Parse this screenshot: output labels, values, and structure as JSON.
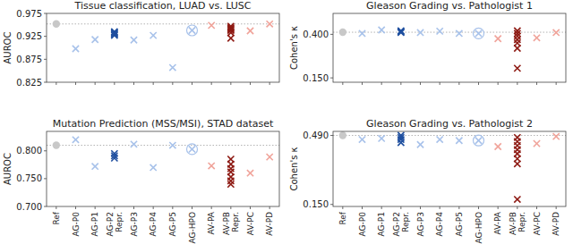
{
  "chart_data": [
    {
      "type": "scatter",
      "title": "Tissue classification, LUAD vs. LUSC",
      "y_label": "AUROC",
      "categories": [
        "Ref",
        "AG-P0",
        "AG-P1",
        "AG-P2 Repr.",
        "AG-P3",
        "AG-P4",
        "AG-P5",
        "AG-HPO",
        "AV-PA",
        "AV-PB Repr.",
        "AV-PC",
        "AV-PD"
      ],
      "tick_labels": "y",
      "ylim": [
        0.825,
        0.975
      ],
      "yticks": [
        0.825,
        0.875,
        0.925,
        0.975
      ],
      "series": [
        {
          "marker": "circle",
          "color": "#c8c8c8",
          "line_style": "dotted",
          "values": [
            0.952,
            null,
            null,
            null,
            null,
            null,
            null,
            null,
            null,
            null,
            null,
            null
          ]
        },
        {
          "marker": "x",
          "color": "#a8c2ea",
          "values": [
            null,
            0.898,
            0.918,
            null,
            0.917,
            0.927,
            0.857,
            null,
            null,
            null,
            null,
            null
          ]
        },
        {
          "marker": "x",
          "color": "#1f4f9f",
          "values": [
            null,
            null,
            null,
            [
              0.935,
              0.933,
              0.931,
              0.929,
              0.927
            ],
            null,
            null,
            null,
            null,
            null,
            null,
            null,
            null
          ]
        },
        {
          "marker": "circle-x",
          "color": "#a8c2ea",
          "values": [
            null,
            null,
            null,
            null,
            null,
            null,
            null,
            0.938,
            null,
            null,
            null,
            null
          ]
        },
        {
          "marker": "x",
          "color": "#f0a39a",
          "values": [
            null,
            null,
            null,
            null,
            null,
            null,
            null,
            null,
            0.949,
            null,
            0.937,
            0.952
          ]
        },
        {
          "marker": "x",
          "color": "#8e1b14",
          "values": [
            null,
            null,
            null,
            null,
            null,
            null,
            null,
            null,
            null,
            [
              0.947,
              0.944,
              0.942,
              0.94,
              0.938,
              0.933,
              0.921
            ],
            null,
            null
          ]
        }
      ]
    },
    {
      "type": "scatter",
      "title": "Gleason Grading vs. Pathologist 1",
      "y_label": "Cohen's κ",
      "categories": [
        "Ref",
        "AG-P0",
        "AG-P1",
        "AG-P2 Repr.",
        "AG-P3",
        "AG-P4",
        "AG-P5",
        "AG-HPO",
        "AV-PA",
        "AV-PB Repr.",
        "AV-PC",
        "AV-PD"
      ],
      "tick_labels": "y",
      "ylim": [
        0.125,
        0.52
      ],
      "yticks": [
        {
          "value": 0.15,
          "label": "0.150"
        },
        {
          "value": 0.4,
          "label": "0.400"
        }
      ],
      "series": [
        {
          "marker": "circle",
          "color": "#c8c8c8",
          "line_style": "dotted",
          "values": [
            0.412,
            null,
            null,
            null,
            null,
            null,
            null,
            null,
            null,
            null,
            null,
            null
          ]
        },
        {
          "marker": "x",
          "color": "#a8c2ea",
          "values": [
            null,
            0.405,
            0.425,
            null,
            0.41,
            0.418,
            0.405,
            null,
            null,
            null,
            null,
            null
          ]
        },
        {
          "marker": "x",
          "color": "#1f4f9f",
          "values": [
            null,
            null,
            null,
            [
              0.42,
              0.415,
              0.41
            ],
            null,
            null,
            null,
            null,
            null,
            null,
            null,
            null
          ]
        },
        {
          "marker": "circle-x",
          "color": "#a8c2ea",
          "values": [
            null,
            null,
            null,
            null,
            null,
            null,
            null,
            0.405,
            null,
            null,
            null,
            null
          ]
        },
        {
          "marker": "x",
          "color": "#f0a39a",
          "values": [
            null,
            null,
            null,
            null,
            null,
            null,
            null,
            null,
            0.375,
            null,
            0.38,
            0.41
          ]
        },
        {
          "marker": "x",
          "color": "#8e1b14",
          "values": [
            null,
            null,
            null,
            null,
            null,
            null,
            null,
            null,
            null,
            [
              0.42,
              0.405,
              0.39,
              0.37,
              0.35,
              0.32,
              0.205
            ],
            null,
            null
          ]
        }
      ]
    },
    {
      "type": "scatter",
      "title": "Mutation Prediction (MSS/MSI), STAD dataset",
      "y_label": "AUROC",
      "categories": [
        "Ref",
        "AG-P0",
        "AG-P1",
        "AG-P2 Repr.",
        "AG-P3",
        "AG-P4",
        "AG-P5",
        "AG-HPO",
        "AV-PA",
        "AV-PB Repr.",
        "AV-PC",
        "AV-PD"
      ],
      "ylim": [
        0.7,
        0.835
      ],
      "yticks": [
        {
          "value": 0.7,
          "label": "0.700"
        },
        {
          "value": 0.75,
          "label": "0.750"
        },
        {
          "value": 0.8,
          "label": "0.800"
        }
      ],
      "series": [
        {
          "marker": "circle",
          "color": "#c8c8c8",
          "line_style": "dotted",
          "values": [
            0.81,
            null,
            null,
            null,
            null,
            null,
            null,
            null,
            null,
            null,
            null,
            null
          ]
        },
        {
          "marker": "x",
          "color": "#a8c2ea",
          "values": [
            null,
            0.82,
            0.772,
            null,
            0.812,
            0.77,
            0.81,
            null,
            null,
            null,
            null,
            null
          ]
        },
        {
          "marker": "x",
          "color": "#1f4f9f",
          "values": [
            null,
            null,
            null,
            [
              0.795,
              0.791,
              0.787
            ],
            null,
            null,
            null,
            null,
            null,
            null,
            null,
            null
          ]
        },
        {
          "marker": "circle-x",
          "color": "#a8c2ea",
          "values": [
            null,
            null,
            null,
            null,
            null,
            null,
            null,
            0.803,
            null,
            null,
            null,
            null
          ]
        },
        {
          "marker": "x",
          "color": "#f0a39a",
          "values": [
            null,
            null,
            null,
            null,
            null,
            null,
            null,
            null,
            0.773,
            null,
            0.76,
            0.789
          ]
        },
        {
          "marker": "x",
          "color": "#8e1b14",
          "values": [
            null,
            null,
            null,
            null,
            null,
            null,
            null,
            null,
            null,
            [
              0.785,
              0.776,
              0.768,
              0.762,
              0.753,
              0.746,
              0.74
            ],
            null,
            null
          ]
        }
      ]
    },
    {
      "type": "scatter",
      "title": "Gleason Grading vs. Pathologist 2",
      "y_label": "Cohen's κ",
      "categories": [
        "Ref",
        "AG-P0",
        "AG-P1",
        "AG-P2 Repr.",
        "AG-P3",
        "AG-P4",
        "AG-P5",
        "AG-HPO",
        "AV-PA",
        "AV-PB Repr.",
        "AV-PC",
        "AV-PD"
      ],
      "ylim": [
        0.14,
        0.51
      ],
      "yticks": [
        {
          "value": 0.15,
          "label": "0.150"
        },
        {
          "value": 0.49,
          "label": "0.490"
        }
      ],
      "series": [
        {
          "marker": "circle",
          "color": "#c8c8c8",
          "line_style": "dotted",
          "values": [
            0.49,
            null,
            null,
            null,
            null,
            null,
            null,
            null,
            null,
            null,
            null,
            null
          ]
        },
        {
          "marker": "x",
          "color": "#a8c2ea",
          "values": [
            null,
            0.47,
            0.475,
            null,
            0.445,
            0.47,
            0.465,
            null,
            null,
            null,
            null,
            null
          ]
        },
        {
          "marker": "x",
          "color": "#1f4f9f",
          "values": [
            null,
            null,
            null,
            [
              0.49,
              0.48,
              0.47,
              0.455
            ],
            null,
            null,
            null,
            null,
            null,
            null,
            null,
            null
          ]
        },
        {
          "marker": "circle-x",
          "color": "#a8c2ea",
          "values": [
            null,
            null,
            null,
            null,
            null,
            null,
            null,
            0.465,
            null,
            null,
            null,
            null
          ]
        },
        {
          "marker": "x",
          "color": "#f0a39a",
          "values": [
            null,
            null,
            null,
            null,
            null,
            null,
            null,
            null,
            0.435,
            null,
            0.45,
            0.485
          ]
        },
        {
          "marker": "x",
          "color": "#8e1b14",
          "values": [
            null,
            null,
            null,
            null,
            null,
            null,
            null,
            null,
            null,
            [
              0.48,
              0.46,
              0.44,
              0.42,
              0.4,
              0.375,
              0.35,
              0.175
            ],
            null,
            null
          ]
        }
      ]
    }
  ]
}
